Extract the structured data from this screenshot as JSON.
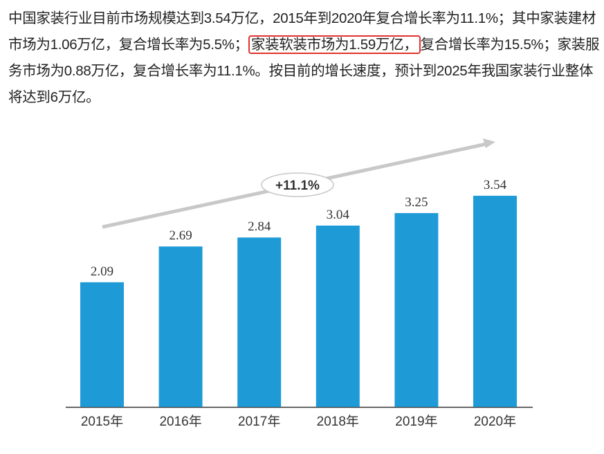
{
  "paragraph": {
    "before": "中国家装行业目前市场规模达到3.54万亿，2015年到2020年复合增长率为11.1%；其中家装建材市场为1.06万亿，复合增长率为5.5%；",
    "highlighted": "家装软装市场为1.59万亿，",
    "after": "复合增长率为15.5%；家装服务市场为0.88万亿，复合增长率为11.1%。按目前的增长速度，预计到2025年我国家装行业整体将达到6万亿。",
    "highlight_color": "#e0312b"
  },
  "chart_data": {
    "type": "bar",
    "categories": [
      "2015年",
      "2016年",
      "2017年",
      "2018年",
      "2019年",
      "2020年"
    ],
    "values": [
      2.09,
      2.69,
      2.84,
      3.04,
      3.25,
      3.54
    ],
    "data_labels": [
      "2.09",
      "2.69",
      "2.84",
      "3.04",
      "3.25",
      "3.54"
    ],
    "annotation": "+11.1%",
    "ylim": [
      0,
      3.54
    ],
    "grid": false,
    "bar_color": "#1e9bd7",
    "trend_arrow_color": "#c8c8c8"
  }
}
